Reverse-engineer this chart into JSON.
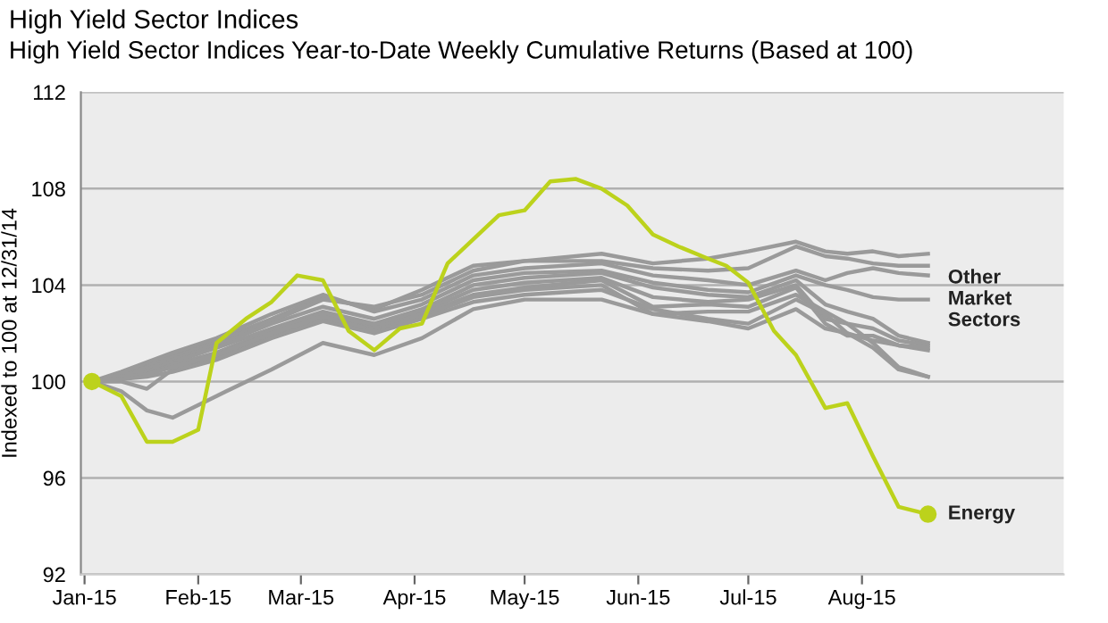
{
  "chart_data": {
    "type": "line",
    "title": "High Yield Sector Indices",
    "subtitle": "High Yield Sector Indices Year-to-Date Weekly Cumulative Returns (Based at 100)",
    "ylabel": "Indexed to 100 at 12/31/14",
    "x": [
      "2015-01-03",
      "2015-01-11",
      "2015-01-18",
      "2015-01-25",
      "2015-02-06",
      "2015-02-21",
      "2015-03-07",
      "2015-03-21",
      "2015-04-03",
      "2015-04-17",
      "2015-05-01",
      "2015-05-22",
      "2015-06-05",
      "2015-06-20",
      "2015-07-01",
      "2015-07-14",
      "2015-07-22",
      "2015-07-28",
      "2015-08-04",
      "2015-08-11",
      "2015-08-19"
    ],
    "series": [
      {
        "color": "#9a9a9a",
        "values": [
          100,
          100.3,
          100.7,
          101.1,
          101.7,
          102.6,
          103.5,
          103.0,
          103.8,
          104.8,
          105.0,
          105.3,
          104.9,
          105.1,
          105.4,
          105.8,
          105.4,
          105.3,
          105.4,
          105.2,
          105.3
        ]
      },
      {
        "color": "#9a9a9a",
        "values": [
          100,
          100.2,
          100.6,
          101.0,
          101.6,
          102.5,
          103.4,
          103.1,
          103.6,
          104.6,
          105.0,
          105.0,
          104.7,
          104.6,
          104.7,
          105.6,
          105.2,
          105.1,
          104.9,
          104.8,
          104.8
        ]
      },
      {
        "color": "#9a9a9a",
        "values": [
          100,
          100.4,
          100.8,
          101.2,
          101.8,
          102.8,
          103.6,
          102.9,
          103.4,
          104.4,
          104.7,
          104.9,
          104.4,
          104.2,
          104.0,
          104.6,
          104.2,
          104.5,
          104.7,
          104.5,
          104.4
        ]
      },
      {
        "name": "Other Market Sectors",
        "color": "#9a9a9a",
        "values": [
          100,
          100.2,
          100.5,
          100.9,
          101.5,
          102.4,
          103.1,
          102.6,
          103.2,
          104.2,
          104.5,
          104.6,
          104.1,
          103.8,
          103.7,
          104.4,
          104.0,
          103.8,
          103.5,
          103.4,
          103.4
        ]
      },
      {
        "color": "#9a9a9a",
        "values": [
          100,
          100.1,
          100.4,
          100.8,
          101.4,
          102.2,
          102.9,
          102.4,
          103.0,
          104.0,
          104.3,
          104.5,
          103.9,
          103.6,
          103.5,
          104.2,
          103.2,
          102.9,
          102.6,
          101.9,
          101.6
        ]
      },
      {
        "color": "#9a9a9a",
        "values": [
          100,
          100.3,
          100.3,
          100.7,
          101.2,
          102.1,
          102.8,
          102.3,
          102.9,
          103.8,
          104.1,
          104.3,
          103.5,
          103.3,
          103.4,
          104.0,
          102.6,
          102.4,
          102.2,
          101.7,
          101.5
        ]
      },
      {
        "color": "#9a9a9a",
        "values": [
          100,
          100.0,
          99.7,
          100.5,
          101.0,
          101.9,
          102.6,
          102.2,
          102.8,
          103.6,
          103.9,
          104.2,
          103.1,
          103.2,
          103.1,
          103.9,
          102.4,
          101.9,
          101.9,
          101.5,
          101.3
        ]
      },
      {
        "color": "#9a9a9a",
        "values": [
          100,
          100.2,
          100.3,
          100.6,
          101.1,
          102.0,
          102.7,
          102.1,
          102.7,
          103.5,
          103.8,
          104.0,
          102.8,
          102.9,
          102.9,
          103.6,
          102.9,
          102.4,
          101.6,
          100.6,
          100.2
        ]
      },
      {
        "color": "#9a9a9a",
        "values": [
          100,
          100.1,
          100.2,
          100.4,
          100.9,
          101.8,
          102.5,
          102.0,
          102.6,
          103.3,
          103.6,
          103.8,
          103.0,
          102.6,
          102.4,
          103.4,
          102.8,
          102.0,
          101.4,
          100.5,
          100.2
        ]
      },
      {
        "color": "#9a9a9a",
        "values": [
          100,
          99.6,
          98.8,
          98.5,
          99.4,
          100.5,
          101.6,
          101.1,
          101.8,
          103.0,
          103.4,
          103.4,
          102.8,
          102.5,
          102.2,
          103.0,
          102.2,
          102.0,
          101.7,
          101.5,
          101.4
        ]
      },
      {
        "name": "Energy",
        "color": "#bcd21c",
        "x": [
          "2015-01-03",
          "2015-01-11",
          "2015-01-18",
          "2015-01-25",
          "2015-02-01",
          "2015-02-06",
          "2015-02-14",
          "2015-02-21",
          "2015-02-28",
          "2015-03-07",
          "2015-03-14",
          "2015-03-21",
          "2015-03-28",
          "2015-04-03",
          "2015-04-10",
          "2015-04-17",
          "2015-04-24",
          "2015-05-01",
          "2015-05-08",
          "2015-05-15",
          "2015-05-22",
          "2015-05-29",
          "2015-06-05",
          "2015-06-12",
          "2015-06-20",
          "2015-06-25",
          "2015-07-01",
          "2015-07-08",
          "2015-07-14",
          "2015-07-22",
          "2015-07-28",
          "2015-08-04",
          "2015-08-11",
          "2015-08-19"
        ],
        "values": [
          100.0,
          99.4,
          97.5,
          97.5,
          98.0,
          101.6,
          102.6,
          103.3,
          104.4,
          104.2,
          102.1,
          101.3,
          102.2,
          102.4,
          104.9,
          105.9,
          106.9,
          107.1,
          108.3,
          108.4,
          108.0,
          107.3,
          106.1,
          105.6,
          105.1,
          104.8,
          104.1,
          102.1,
          101.1,
          98.9,
          99.1,
          96.9,
          94.8,
          94.5
        ]
      }
    ],
    "xlim": [
      "2014-12-31",
      "2015-09-25"
    ],
    "xticks": [
      {
        "value": "2015-01-01",
        "label": "Jan-15"
      },
      {
        "value": "2015-02-01",
        "label": "Feb-15"
      },
      {
        "value": "2015-03-01",
        "label": "Mar-15"
      },
      {
        "value": "2015-04-01",
        "label": "Apr-15"
      },
      {
        "value": "2015-05-01",
        "label": "May-15"
      },
      {
        "value": "2015-06-01",
        "label": "Jun-15"
      },
      {
        "value": "2015-07-01",
        "label": "Jul-15"
      },
      {
        "value": "2015-08-01",
        "label": "Aug-15"
      }
    ],
    "ylim": [
      92,
      112
    ],
    "yticks": [
      92,
      96,
      100,
      104,
      108,
      112
    ],
    "grid": "y",
    "legend": false
  }
}
